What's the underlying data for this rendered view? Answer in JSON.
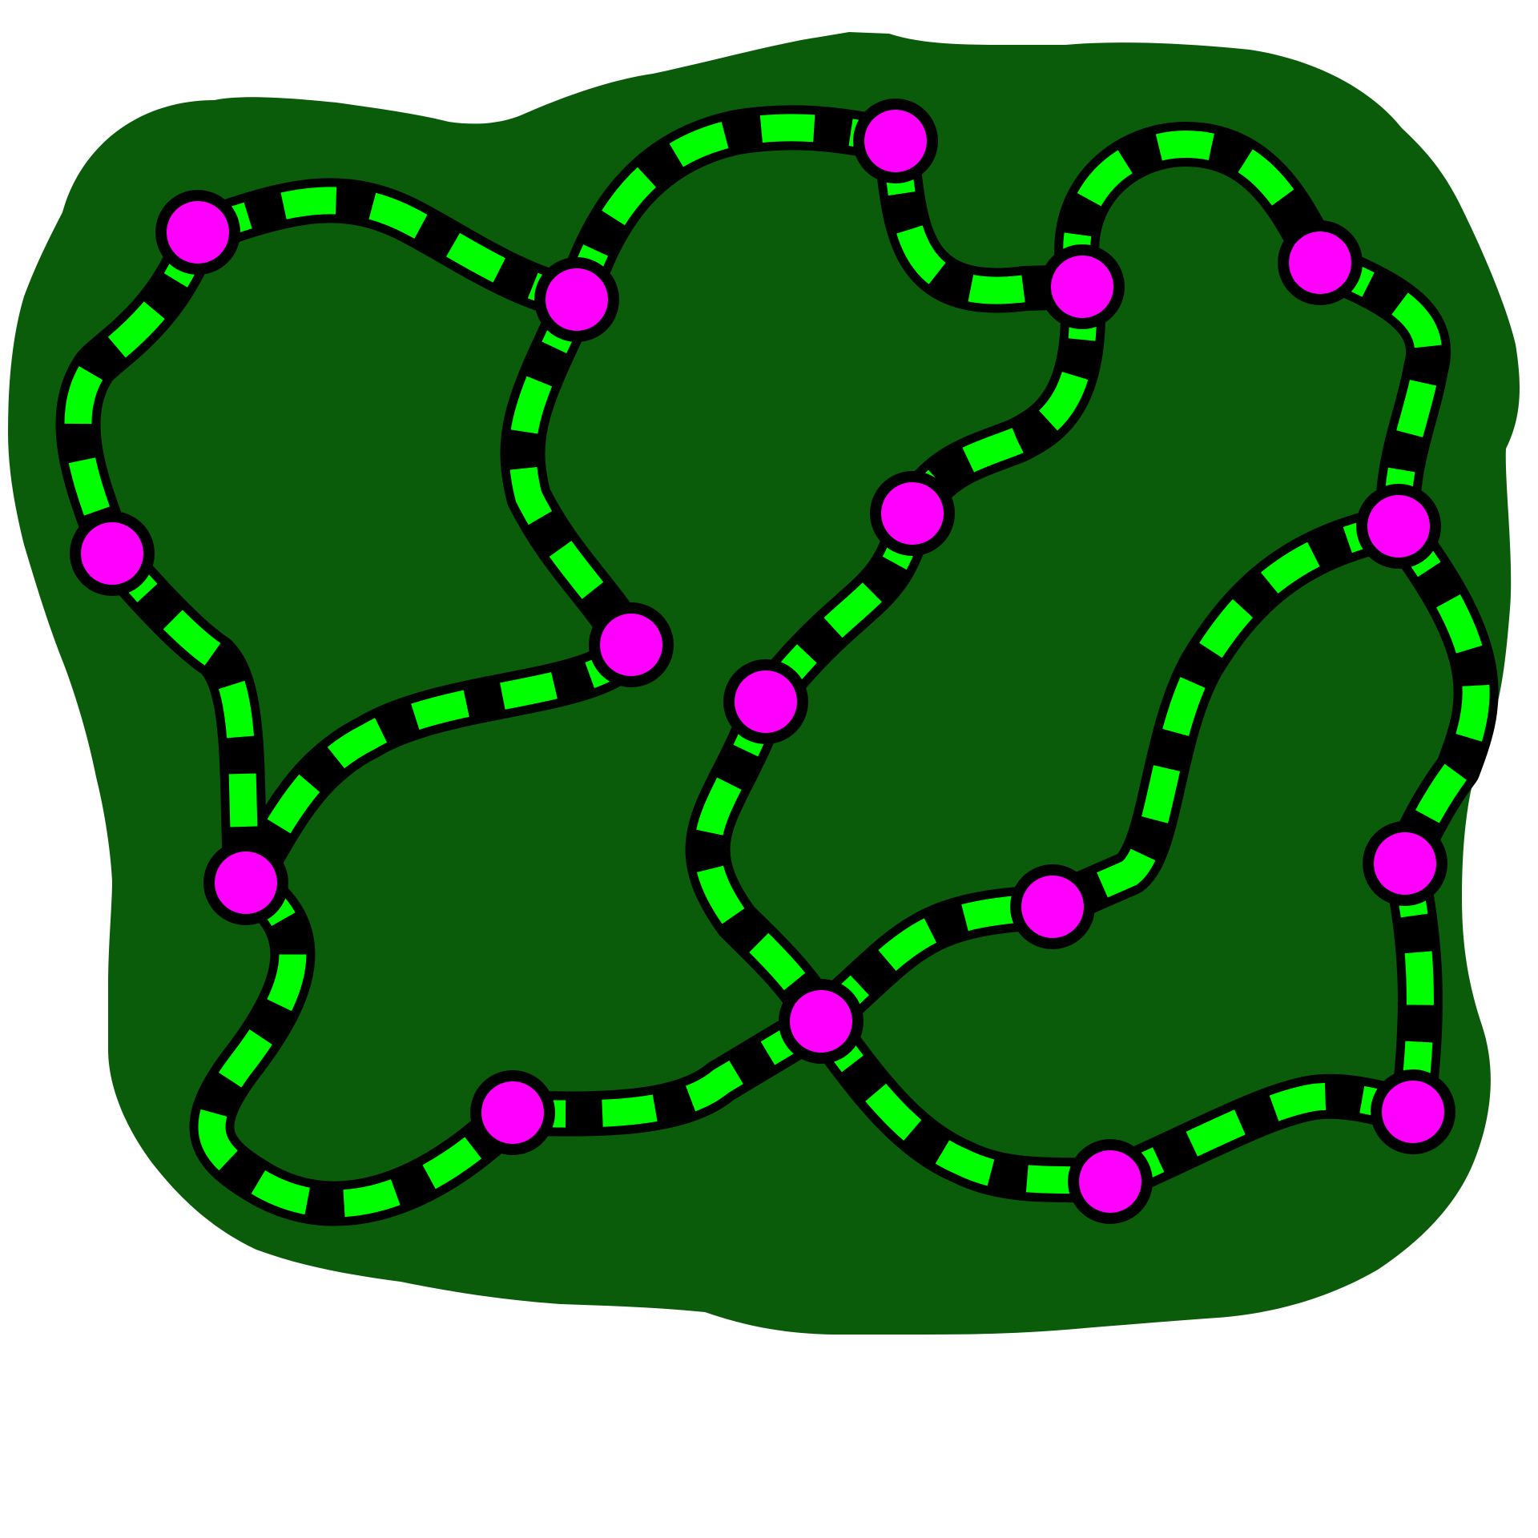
{
  "colors": {
    "background": "#ffffff",
    "land": "#0a5c0a",
    "edge_outline": "#000000",
    "edge_core": "#000000",
    "edge_dash": "#00ff00",
    "node_fill": "#ff00ff",
    "node_stroke": "#000000"
  },
  "graph": {
    "node_count": 17,
    "edge_count": 20,
    "edge_style": "curved black track with green dashes",
    "node_style": "magenta circle with black outline"
  }
}
